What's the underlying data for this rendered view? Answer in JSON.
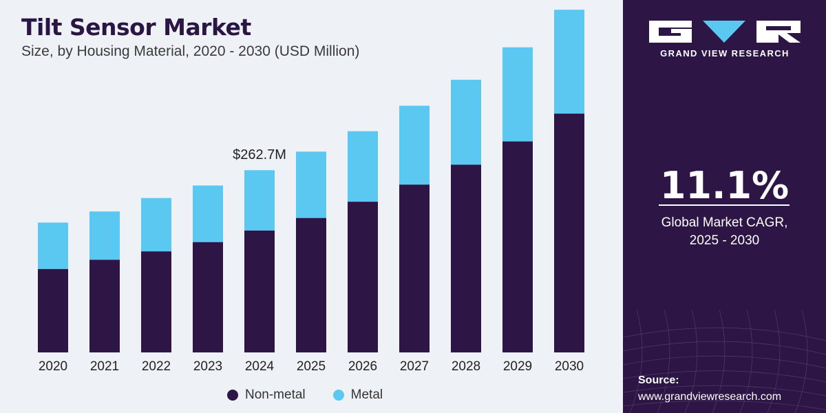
{
  "header": {
    "title": "Tilt Sensor Market",
    "subtitle": "Size, by Housing Material, 2020 - 2030 (USD Million)"
  },
  "chart_data": {
    "type": "bar",
    "stacked": true,
    "categories": [
      "2020",
      "2021",
      "2022",
      "2023",
      "2024",
      "2025",
      "2026",
      "2027",
      "2028",
      "2029",
      "2030"
    ],
    "series": [
      {
        "name": "Non-metal",
        "color": "#2d1546",
        "values": [
          180,
          200,
          218,
          238,
          263,
          290,
          325,
          362,
          405,
          455,
          515
        ]
      },
      {
        "name": "Metal",
        "color": "#5bc8f2",
        "values": [
          100,
          104,
          115,
          122,
          130,
          143,
          152,
          170,
          183,
          203,
          224
        ]
      }
    ],
    "annotations": [
      {
        "category": "2024",
        "text": "$262.7M"
      }
    ],
    "ylim": [
      0,
      760
    ],
    "grid": false,
    "legend": "bottom-center"
  },
  "brand": {
    "name": "GRAND VIEW RESEARCH",
    "colors": {
      "panel": "#2d1546",
      "accent": "#5bc8f2"
    }
  },
  "stat": {
    "value": "11.1%",
    "label_line1": "Global Market CAGR,",
    "label_line2": "2025 - 2030"
  },
  "source": {
    "label": "Source:",
    "url": "www.grandviewresearch.com"
  }
}
